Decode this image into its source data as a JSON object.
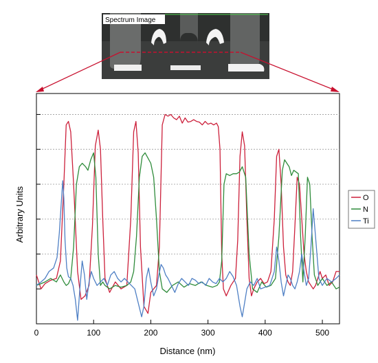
{
  "inset": {
    "label": "Spectrum Image"
  },
  "chart_data": {
    "type": "line",
    "title": "",
    "xlabel": "Distance (nm)",
    "ylabel": "Arbitrary Units",
    "xlim": [
      0,
      530
    ],
    "ylim": [
      -1,
      5.6
    ],
    "x_ticks": [
      0,
      100,
      200,
      300,
      400,
      500
    ],
    "y_gridlines": [
      1,
      2,
      3,
      4,
      5
    ],
    "grid": true,
    "legend_position": "right",
    "series": [
      {
        "name": "O",
        "color": "#cc1f3a",
        "x": [
          0,
          8,
          15,
          25,
          35,
          42,
          48,
          52,
          56,
          60,
          65,
          72,
          78,
          85,
          92,
          98,
          103,
          108,
          112,
          116,
          120,
          128,
          138,
          148,
          158,
          165,
          170,
          174,
          178,
          182,
          188,
          195,
          200,
          205,
          210,
          215,
          220,
          225,
          230,
          235,
          240,
          245,
          250,
          255,
          260,
          265,
          270,
          275,
          280,
          285,
          290,
          295,
          300,
          305,
          310,
          315,
          318,
          321,
          324,
          327,
          332,
          340,
          348,
          352,
          356,
          360,
          364,
          368,
          372,
          376,
          380,
          386,
          392,
          398,
          404,
          410,
          416,
          420,
          424,
          428,
          432,
          436,
          440,
          444,
          448,
          452,
          456,
          460,
          464,
          468,
          472,
          476,
          480,
          484,
          488,
          492,
          496,
          500,
          506,
          512,
          518,
          524,
          530
        ],
        "y": [
          0.4,
          0.0,
          0.15,
          0.25,
          0.3,
          0.8,
          3.0,
          4.7,
          4.8,
          4.5,
          3.0,
          0.5,
          -0.3,
          -0.2,
          0.1,
          1.8,
          4.1,
          4.55,
          4.0,
          2.0,
          0.3,
          -0.1,
          0.2,
          0.0,
          0.1,
          2.0,
          4.5,
          4.8,
          3.9,
          1.2,
          -0.5,
          -0.7,
          -0.1,
          0.0,
          0.1,
          1.2,
          4.7,
          5.0,
          4.95,
          5.0,
          4.9,
          4.85,
          4.95,
          4.75,
          4.9,
          4.78,
          4.8,
          4.85,
          4.8,
          4.78,
          4.7,
          4.8,
          4.72,
          4.75,
          4.7,
          4.75,
          4.65,
          4.0,
          1.0,
          0.0,
          -0.2,
          0.1,
          0.3,
          1.4,
          3.8,
          4.5,
          4.1,
          2.0,
          0.3,
          -0.2,
          0.0,
          0.2,
          0.3,
          0.15,
          0.2,
          0.5,
          2.0,
          3.8,
          4.0,
          3.0,
          1.2,
          0.4,
          0.2,
          0.1,
          0.5,
          1.8,
          3.2,
          3.0,
          2.0,
          1.0,
          0.5,
          0.2,
          0.1,
          0.0,
          0.1,
          0.3,
          0.5,
          0.3,
          0.4,
          0.1,
          0.2,
          0.5,
          0.5
        ]
      },
      {
        "name": "N",
        "color": "#2e8b3a",
        "x": [
          0,
          8,
          15,
          25,
          35,
          42,
          48,
          52,
          56,
          60,
          65,
          70,
          75,
          80,
          86,
          90,
          95,
          100,
          104,
          108,
          112,
          116,
          120,
          128,
          138,
          148,
          158,
          165,
          170,
          175,
          180,
          185,
          190,
          195,
          200,
          205,
          210,
          215,
          220,
          228,
          238,
          248,
          258,
          268,
          278,
          288,
          298,
          308,
          316,
          320,
          324,
          328,
          332,
          338,
          344,
          350,
          355,
          360,
          366,
          372,
          378,
          386,
          394,
          402,
          410,
          418,
          424,
          430,
          434,
          438,
          442,
          446,
          450,
          454,
          458,
          462,
          466,
          470,
          474,
          478,
          482,
          486,
          492,
          500,
          508,
          516,
          524,
          530
        ],
        "y": [
          0.1,
          0.15,
          0.2,
          0.3,
          0.2,
          0.4,
          0.2,
          0.1,
          0.15,
          0.3,
          1.2,
          3.0,
          3.5,
          3.6,
          3.5,
          3.4,
          3.7,
          3.9,
          3.2,
          1.0,
          0.1,
          0.2,
          0.1,
          0.0,
          0.1,
          0.05,
          0.1,
          0.2,
          0.5,
          1.5,
          3.2,
          3.8,
          3.9,
          3.75,
          3.6,
          3.2,
          2.0,
          0.5,
          0.0,
          -0.1,
          0.1,
          0.2,
          0.05,
          0.15,
          0.1,
          0.2,
          0.1,
          0.05,
          0.1,
          0.2,
          0.8,
          3.0,
          3.3,
          3.25,
          3.3,
          3.3,
          3.35,
          3.5,
          3.2,
          1.0,
          0.0,
          -0.1,
          0.2,
          0.05,
          0.1,
          0.3,
          1.5,
          3.4,
          3.7,
          3.6,
          3.5,
          3.25,
          3.4,
          3.35,
          3.3,
          1.5,
          0.2,
          1.5,
          3.2,
          3.0,
          1.5,
          0.4,
          0.1,
          0.3,
          0.1,
          0.2,
          0.0,
          0.05
        ]
      },
      {
        "name": "Ti",
        "color": "#4e7fc4",
        "x": [
          0,
          8,
          15,
          22,
          30,
          36,
          40,
          44,
          46,
          48,
          50,
          53,
          56,
          60,
          64,
          68,
          72,
          76,
          80,
          84,
          88,
          92,
          96,
          100,
          106,
          112,
          118,
          124,
          130,
          136,
          142,
          148,
          154,
          160,
          166,
          172,
          178,
          184,
          188,
          192,
          196,
          200,
          205,
          210,
          214,
          218,
          222,
          226,
          230,
          236,
          242,
          248,
          254,
          260,
          266,
          272,
          278,
          284,
          290,
          296,
          302,
          308,
          314,
          320,
          326,
          332,
          338,
          344,
          350,
          356,
          360,
          364,
          368,
          374,
          380,
          386,
          392,
          400,
          408,
          416,
          420,
          424,
          428,
          432,
          436,
          440,
          444,
          448,
          452,
          456,
          460,
          464,
          468,
          472,
          476,
          480,
          484,
          488,
          494,
          500,
          508,
          516,
          524,
          530
        ],
        "y": [
          0.1,
          0.2,
          0.3,
          0.5,
          0.6,
          0.9,
          1.6,
          2.6,
          3.1,
          2.6,
          1.4,
          0.6,
          0.35,
          0.3,
          0.1,
          -0.3,
          -0.9,
          0.0,
          0.8,
          0.4,
          -0.3,
          0.2,
          0.5,
          0.3,
          0.1,
          0.2,
          0.3,
          0.1,
          0.4,
          0.5,
          0.3,
          0.2,
          0.3,
          0.2,
          0.1,
          0.0,
          -0.4,
          -0.8,
          -0.5,
          0.3,
          0.6,
          0.2,
          -0.2,
          0.0,
          0.4,
          0.7,
          0.6,
          0.4,
          0.3,
          0.1,
          -0.1,
          0.15,
          0.3,
          0.2,
          0.1,
          0.3,
          0.25,
          0.15,
          0.2,
          0.1,
          0.3,
          0.2,
          0.15,
          0.3,
          0.2,
          0.3,
          0.5,
          0.35,
          0.1,
          -0.5,
          -0.8,
          -0.4,
          0.0,
          0.2,
          0.1,
          0.3,
          0.0,
          0.05,
          0.1,
          0.5,
          1.2,
          0.8,
          0.2,
          -0.2,
          0.1,
          0.4,
          0.3,
          0.1,
          0.0,
          0.2,
          0.5,
          1.0,
          0.5,
          0.1,
          0.3,
          1.2,
          2.3,
          1.5,
          0.3,
          0.1,
          0.3,
          0.2,
          0.3,
          0.4
        ]
      }
    ],
    "colors": {
      "axis": "#000000",
      "grid": "#999999",
      "callout": "#c8102e"
    }
  }
}
